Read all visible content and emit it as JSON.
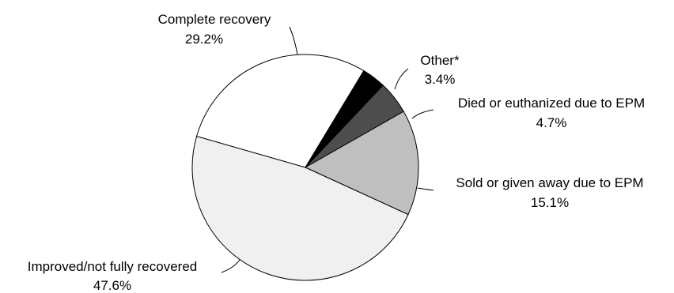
{
  "chart_data": {
    "type": "pie",
    "slices": [
      {
        "label": "Complete recovery",
        "value": 29.2,
        "value_label": "29.2%",
        "color": "#ffffff"
      },
      {
        "label": "Other*",
        "value": 3.4,
        "value_label": "3.4%",
        "color": "#000000"
      },
      {
        "label": "Died or euthanized due to EPM",
        "value": 4.7,
        "value_label": "4.7%",
        "color": "#4d4d4d"
      },
      {
        "label": "Sold or given away due to EPM",
        "value": 15.1,
        "value_label": "15.1%",
        "color": "#bfbfbf"
      },
      {
        "label": "Improved/not fully recovered",
        "value": 47.6,
        "value_label": "47.6%",
        "color": "#f0f0f0"
      }
    ]
  }
}
